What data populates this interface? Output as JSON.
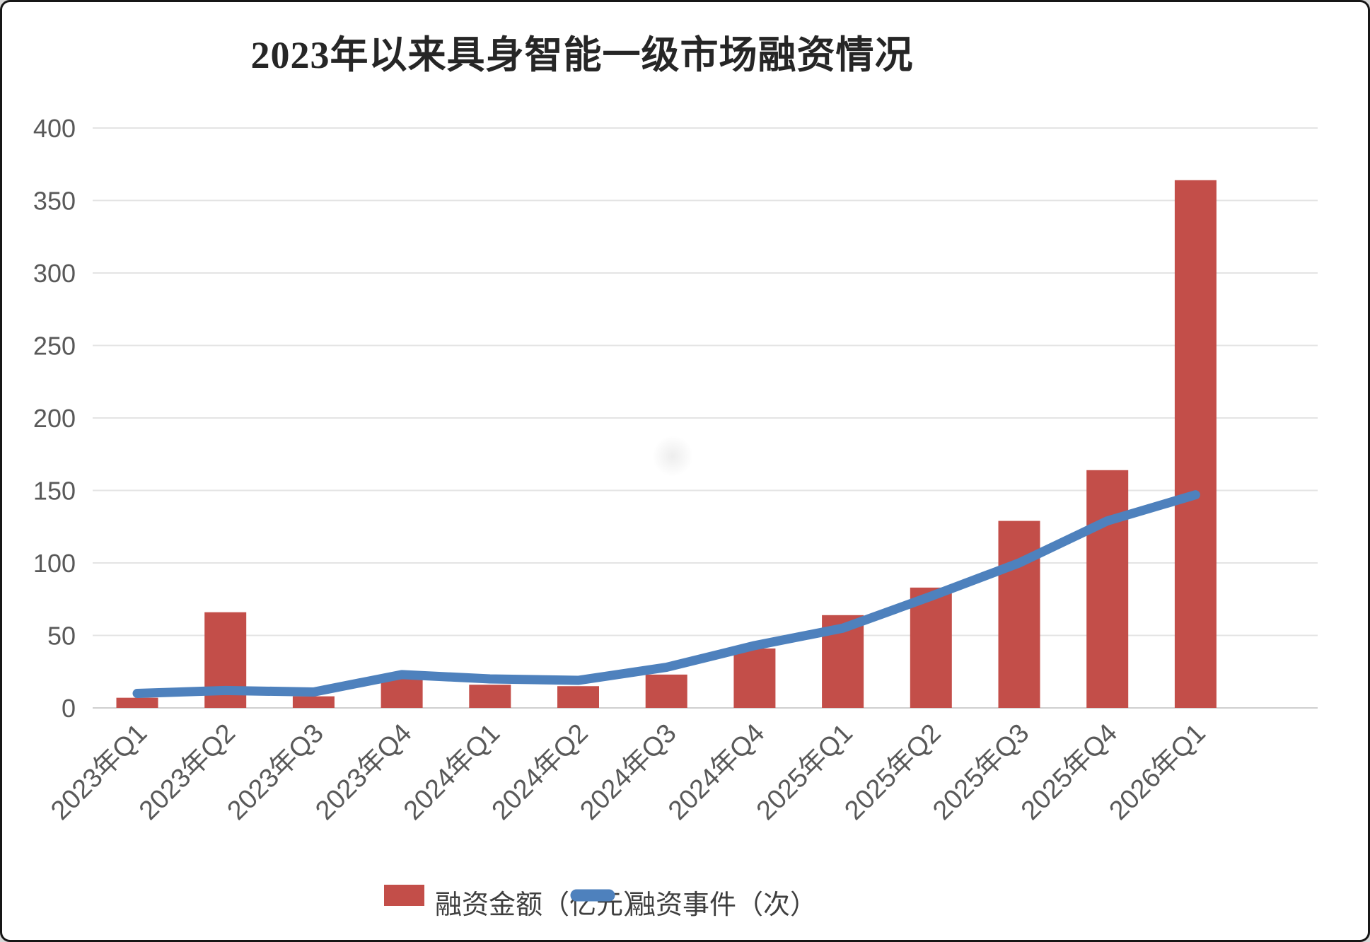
{
  "title": "2023年以来具身智能一级市场融资情况",
  "chart_data": {
    "type": "bar",
    "subtype": "bar-line-combo",
    "title": "2023年以来具身智能一级市场融资情况",
    "categories": [
      "2023年Q1",
      "2023年Q2",
      "2023年Q3",
      "2023年Q4",
      "2024年Q1",
      "2024年Q2",
      "2024年Q3",
      "2024年Q4",
      "2025年Q1",
      "2025年Q2",
      "2025年Q3",
      "2025年Q4",
      "2026年Q1"
    ],
    "series": [
      {
        "name": "融资金额（亿元）",
        "type": "bar",
        "color": "#C34E49",
        "values": [
          7,
          66,
          8,
          20,
          16,
          15,
          23,
          41,
          64,
          83,
          129,
          164,
          364
        ]
      },
      {
        "name": "融资事件（次）",
        "type": "line",
        "color": "#4E81BD",
        "values": [
          10,
          12,
          11,
          23,
          20,
          19,
          28,
          43,
          55,
          77,
          100,
          129,
          147
        ]
      }
    ],
    "ylim": [
      0,
      400
    ],
    "ytick_step": 50,
    "yticks": [
      400,
      350,
      300,
      250,
      200,
      150,
      100,
      50,
      0
    ],
    "xlabel": "",
    "ylabel": "",
    "grid": "horizontal",
    "x_label_rotation_deg": 45,
    "legend_position": "bottom"
  },
  "colors": {
    "bar": "#C34E49",
    "line": "#4E81BD",
    "axis_text": "#595959",
    "legend_text": "#3F3F3F",
    "gridline": "#E4E4E4",
    "baseline": "#CFCFCF",
    "title_text": "#262626",
    "background": "#FFFFFF",
    "frame_border": "#161616"
  }
}
